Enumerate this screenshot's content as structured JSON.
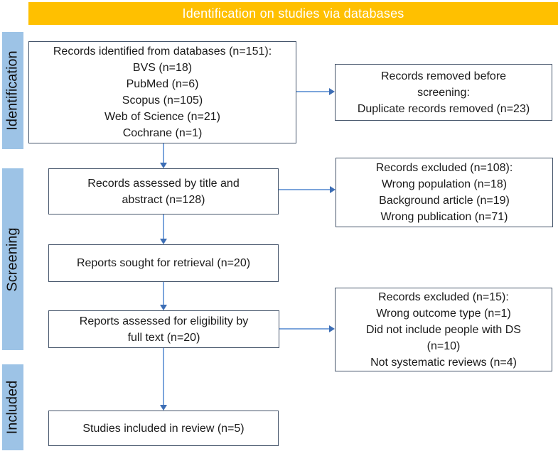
{
  "banner": {
    "label": "Identification on studies via databases"
  },
  "sidebar": {
    "identification": "Identification",
    "screening": "Screening",
    "included": "Included"
  },
  "boxes": {
    "records_identified": "Records identified from databases (n=151):\nBVS (n=18)\nPubMed (n=6)\nScopus (n=105)\nWeb of Science (n=21)\nCochrane (n=1)",
    "records_removed": "Records removed before\nscreening:\nDuplicate records removed (n=23)",
    "records_assessed": "Records assessed by title and\nabstract (n=128)",
    "records_excluded_titles": "Records excluded (n=108):\nWrong population (n=18)\nBackground article (n=19)\nWrong publication (n=71)",
    "reports_sought": "Reports sought for retrieval (n=20)",
    "reports_assessed": "Reports assessed for eligibility by\nfull text (n=20)",
    "records_excluded_fulltext": "Records excluded (n=15):\nWrong outcome type (n=1)\nDid not include people with DS\n(n=10)\nNot systematic reviews (n=4)",
    "studies_included": "Studies included in review (n=5)"
  },
  "colors": {
    "banner_bg": "#FFC000",
    "banner_text": "#FFFFFF",
    "stage_label_bg": "#9DC3E6",
    "box_border": "#44546A",
    "arrow_line": "#7CA5DB",
    "arrow_head": "#3D6EB5",
    "text": "#1A1A1A"
  }
}
